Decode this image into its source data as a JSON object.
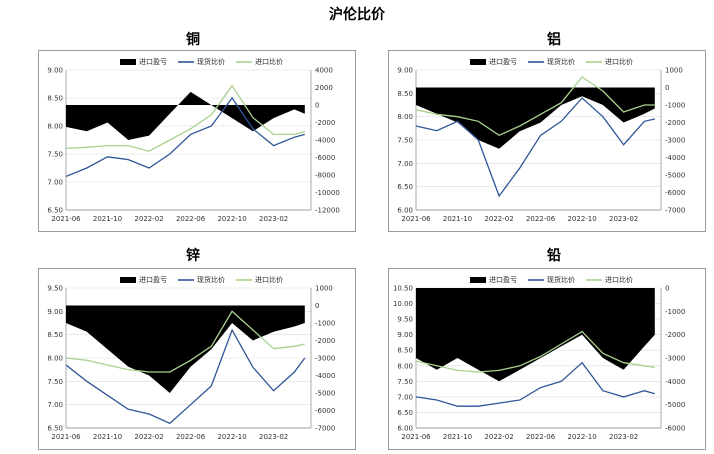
{
  "page_title": "沪伦比价",
  "colors": {
    "bar": "#000000",
    "spot": "#2f5597",
    "import": "#a9d18e"
  },
  "legend": [
    "进口盈亏",
    "现货比价",
    "进口比价"
  ],
  "chart_data": [
    {
      "type": "line",
      "title": "铜",
      "x_ticks": [
        "2021-06",
        "2021-10",
        "2022-02",
        "2022-06",
        "2022-10",
        "2023-02"
      ],
      "x_range": [
        "2021-06",
        "2023-05"
      ],
      "left_axis": {
        "range": [
          6.5,
          9.0
        ],
        "ticks": [
          "9.00",
          "8.50",
          "8.00",
          "7.50",
          "7.00",
          "6.50"
        ]
      },
      "right_axis": {
        "range": [
          -12000,
          4000
        ],
        "ticks": [
          "4000",
          "2000",
          "0",
          "-2000",
          "-4000",
          "-6000",
          "-8000",
          "-10000",
          "-12000"
        ]
      },
      "series": [
        {
          "name": "进口盈亏",
          "kind": "bar",
          "axis": "right",
          "points": [
            [
              "2021-06",
              -2500
            ],
            [
              "2021-08",
              -3000
            ],
            [
              "2021-10",
              -2000
            ],
            [
              "2021-12",
              -4000
            ],
            [
              "2022-02",
              -3500
            ],
            [
              "2022-04",
              -1000
            ],
            [
              "2022-06",
              1500
            ],
            [
              "2022-08",
              0
            ],
            [
              "2022-10",
              -1500
            ],
            [
              "2022-12",
              -3000
            ],
            [
              "2023-02",
              -1500
            ],
            [
              "2023-04",
              -500
            ],
            [
              "2023-05",
              -1000
            ]
          ]
        },
        {
          "name": "现货比价",
          "kind": "line",
          "axis": "left",
          "points": [
            [
              "2021-06",
              7.1
            ],
            [
              "2021-08",
              7.25
            ],
            [
              "2021-10",
              7.45
            ],
            [
              "2021-12",
              7.4
            ],
            [
              "2022-02",
              7.25
            ],
            [
              "2022-04",
              7.5
            ],
            [
              "2022-06",
              7.85
            ],
            [
              "2022-08",
              8.0
            ],
            [
              "2022-10",
              8.5
            ],
            [
              "2022-12",
              7.95
            ],
            [
              "2023-02",
              7.65
            ],
            [
              "2023-04",
              7.8
            ],
            [
              "2023-05",
              7.85
            ]
          ]
        },
        {
          "name": "进口比价",
          "kind": "line",
          "axis": "left",
          "points": [
            [
              "2021-06",
              7.6
            ],
            [
              "2021-08",
              7.62
            ],
            [
              "2021-10",
              7.65
            ],
            [
              "2021-12",
              7.65
            ],
            [
              "2022-02",
              7.55
            ],
            [
              "2022-04",
              7.75
            ],
            [
              "2022-06",
              7.95
            ],
            [
              "2022-08",
              8.2
            ],
            [
              "2022-10",
              8.72
            ],
            [
              "2022-12",
              8.15
            ],
            [
              "2023-02",
              7.85
            ],
            [
              "2023-04",
              7.85
            ],
            [
              "2023-05",
              7.9
            ]
          ]
        }
      ]
    },
    {
      "type": "line",
      "title": "铝",
      "x_ticks": [
        "2021-06",
        "2021-10",
        "2022-02",
        "2022-06",
        "2022-10",
        "2023-02"
      ],
      "x_range": [
        "2021-06",
        "2023-05"
      ],
      "left_axis": {
        "range": [
          6.0,
          9.0
        ],
        "ticks": [
          "9.00",
          "8.50",
          "8.00",
          "7.50",
          "7.00",
          "6.50",
          "6.00"
        ]
      },
      "right_axis": {
        "range": [
          -7000,
          1000
        ],
        "ticks": [
          "1000",
          "0",
          "-1000",
          "-2000",
          "-3000",
          "-4000",
          "-5000",
          "-6000",
          "-7000"
        ]
      },
      "series": [
        {
          "name": "进口盈亏",
          "kind": "bar",
          "axis": "right",
          "points": [
            [
              "2021-06",
              -1000
            ],
            [
              "2021-08",
              -1500
            ],
            [
              "2021-10",
              -2000
            ],
            [
              "2021-12",
              -3000
            ],
            [
              "2022-02",
              -3500
            ],
            [
              "2022-04",
              -2500
            ],
            [
              "2022-06",
              -2000
            ],
            [
              "2022-08",
              -1000
            ],
            [
              "2022-10",
              -500
            ],
            [
              "2022-12",
              -1000
            ],
            [
              "2023-02",
              -2000
            ],
            [
              "2023-04",
              -1500
            ],
            [
              "2023-05",
              -1200
            ]
          ]
        },
        {
          "name": "现货比价",
          "kind": "line",
          "axis": "left",
          "points": [
            [
              "2021-06",
              7.8
            ],
            [
              "2021-08",
              7.7
            ],
            [
              "2021-10",
              7.9
            ],
            [
              "2021-12",
              7.5
            ],
            [
              "2022-02",
              6.3
            ],
            [
              "2022-04",
              6.9
            ],
            [
              "2022-06",
              7.6
            ],
            [
              "2022-08",
              7.9
            ],
            [
              "2022-10",
              8.4
            ],
            [
              "2022-12",
              8.0
            ],
            [
              "2023-02",
              7.4
            ],
            [
              "2023-04",
              7.9
            ],
            [
              "2023-05",
              7.95
            ]
          ]
        },
        {
          "name": "进口比价",
          "kind": "line",
          "axis": "left",
          "points": [
            [
              "2021-06",
              8.15
            ],
            [
              "2021-08",
              8.05
            ],
            [
              "2021-10",
              8.0
            ],
            [
              "2021-12",
              7.9
            ],
            [
              "2022-02",
              7.6
            ],
            [
              "2022-04",
              7.8
            ],
            [
              "2022-06",
              8.05
            ],
            [
              "2022-08",
              8.3
            ],
            [
              "2022-10",
              8.85
            ],
            [
              "2022-12",
              8.55
            ],
            [
              "2023-02",
              8.1
            ],
            [
              "2023-04",
              8.25
            ],
            [
              "2023-05",
              8.25
            ]
          ]
        }
      ]
    },
    {
      "type": "line",
      "title": "锌",
      "x_ticks": [
        "2021-06",
        "2021-10",
        "2022-02",
        "2022-06",
        "2022-10",
        "2023-02"
      ],
      "x_range": [
        "2021-06",
        "2023-05"
      ],
      "left_axis": {
        "range": [
          6.5,
          9.5
        ],
        "ticks": [
          "9.50",
          "9.00",
          "8.50",
          "8.00",
          "7.50",
          "7.00",
          "6.50"
        ]
      },
      "right_axis": {
        "range": [
          -7000,
          1000
        ],
        "ticks": [
          "1000",
          "0",
          "-1000",
          "-2000",
          "-3000",
          "-4000",
          "-5000",
          "-6000",
          "-7000"
        ]
      },
      "series": [
        {
          "name": "进口盈亏",
          "kind": "bar",
          "axis": "right",
          "points": [
            [
              "2021-06",
              -1000
            ],
            [
              "2021-08",
              -1500
            ],
            [
              "2021-10",
              -2500
            ],
            [
              "2021-12",
              -3500
            ],
            [
              "2022-02",
              -4000
            ],
            [
              "2022-04",
              -5000
            ],
            [
              "2022-06",
              -3500
            ],
            [
              "2022-08",
              -2500
            ],
            [
              "2022-10",
              -1000
            ],
            [
              "2022-12",
              -2000
            ],
            [
              "2023-02",
              -1500
            ],
            [
              "2023-04",
              -1200
            ],
            [
              "2023-05",
              -1000
            ]
          ]
        },
        {
          "name": "现货比价",
          "kind": "line",
          "axis": "left",
          "points": [
            [
              "2021-06",
              7.85
            ],
            [
              "2021-08",
              7.5
            ],
            [
              "2021-10",
              7.2
            ],
            [
              "2021-12",
              6.9
            ],
            [
              "2022-02",
              6.8
            ],
            [
              "2022-04",
              6.6
            ],
            [
              "2022-06",
              7.0
            ],
            [
              "2022-08",
              7.4
            ],
            [
              "2022-10",
              8.6
            ],
            [
              "2022-12",
              7.8
            ],
            [
              "2023-02",
              7.3
            ],
            [
              "2023-04",
              7.7
            ],
            [
              "2023-05",
              8.0
            ]
          ]
        },
        {
          "name": "进口比价",
          "kind": "line",
          "axis": "left",
          "points": [
            [
              "2021-06",
              8.0
            ],
            [
              "2021-08",
              7.95
            ],
            [
              "2021-10",
              7.85
            ],
            [
              "2021-12",
              7.75
            ],
            [
              "2022-02",
              7.7
            ],
            [
              "2022-04",
              7.7
            ],
            [
              "2022-06",
              7.95
            ],
            [
              "2022-08",
              8.25
            ],
            [
              "2022-10",
              9.0
            ],
            [
              "2022-12",
              8.6
            ],
            [
              "2023-02",
              8.2
            ],
            [
              "2023-04",
              8.25
            ],
            [
              "2023-05",
              8.3
            ]
          ]
        }
      ]
    },
    {
      "type": "line",
      "title": "铅",
      "x_ticks": [
        "2021-06",
        "2021-10",
        "2022-02",
        "2022-06",
        "2022-10",
        "2023-02"
      ],
      "x_range": [
        "2021-06",
        "2023-05"
      ],
      "left_axis": {
        "range": [
          6.0,
          10.5
        ],
        "ticks": [
          "10.50",
          "10.00",
          "9.50",
          "9.00",
          "8.50",
          "8.00",
          "7.50",
          "7.00",
          "6.50",
          "6.00"
        ]
      },
      "right_axis": {
        "range": [
          -6000,
          0
        ],
        "ticks": [
          "0",
          "-1000",
          "-2000",
          "-3000",
          "-4000",
          "-5000",
          "-6000"
        ]
      },
      "series": [
        {
          "name": "进口盈亏",
          "kind": "bar",
          "axis": "right",
          "points": [
            [
              "2021-06",
              -3000
            ],
            [
              "2021-08",
              -3500
            ],
            [
              "2021-10",
              -3000
            ],
            [
              "2021-12",
              -3500
            ],
            [
              "2022-02",
              -4000
            ],
            [
              "2022-04",
              -3500
            ],
            [
              "2022-06",
              -3000
            ],
            [
              "2022-08",
              -2500
            ],
            [
              "2022-10",
              -2000
            ],
            [
              "2022-12",
              -3000
            ],
            [
              "2023-02",
              -3500
            ],
            [
              "2023-04",
              -2500
            ],
            [
              "2023-05",
              -2000
            ]
          ]
        },
        {
          "name": "现货比价",
          "kind": "line",
          "axis": "left",
          "points": [
            [
              "2021-06",
              7.0
            ],
            [
              "2021-08",
              6.9
            ],
            [
              "2021-10",
              6.7
            ],
            [
              "2021-12",
              6.7
            ],
            [
              "2022-02",
              6.8
            ],
            [
              "2022-04",
              6.9
            ],
            [
              "2022-06",
              7.3
            ],
            [
              "2022-08",
              7.5
            ],
            [
              "2022-10",
              8.1
            ],
            [
              "2022-12",
              7.2
            ],
            [
              "2023-02",
              7.0
            ],
            [
              "2023-04",
              7.2
            ],
            [
              "2023-05",
              7.1
            ]
          ]
        },
        {
          "name": "进口比价",
          "kind": "line",
          "axis": "left",
          "points": [
            [
              "2021-06",
              8.15
            ],
            [
              "2021-08",
              8.0
            ],
            [
              "2021-10",
              7.85
            ],
            [
              "2021-12",
              7.8
            ],
            [
              "2022-02",
              7.85
            ],
            [
              "2022-04",
              8.0
            ],
            [
              "2022-06",
              8.3
            ],
            [
              "2022-08",
              8.7
            ],
            [
              "2022-10",
              9.1
            ],
            [
              "2022-12",
              8.4
            ],
            [
              "2023-02",
              8.1
            ],
            [
              "2023-04",
              8.0
            ],
            [
              "2023-05",
              7.95
            ]
          ]
        }
      ]
    }
  ]
}
